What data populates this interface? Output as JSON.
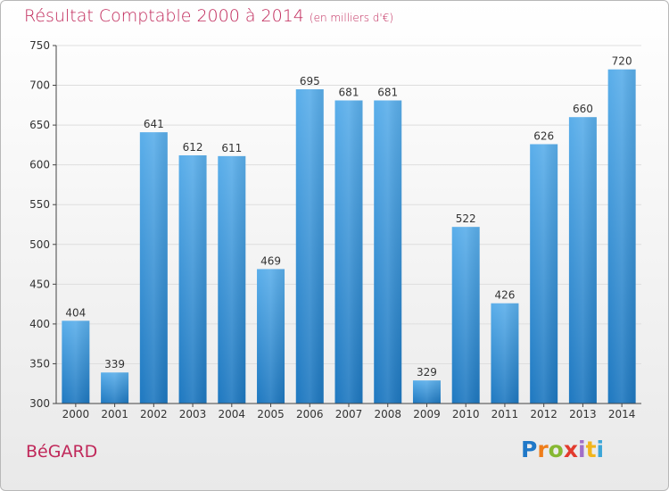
{
  "title": "Résultat Comptable 2000 à 2014",
  "unit": "(en milliers d'€)",
  "commune": "BéGARD",
  "logo": {
    "text": "Proxiti",
    "letters": [
      "P",
      "r",
      "o",
      "x",
      "i",
      "t",
      "i"
    ]
  },
  "colors": {
    "title": "#c0285a",
    "bar_top": "#5aaeea",
    "bar_bottom": "#1e78c0",
    "grid": "#dedede",
    "axis": "#444444"
  },
  "chart_data": {
    "type": "bar",
    "title": "Résultat Comptable 2000 à 2014",
    "xlabel": "",
    "ylabel": "",
    "categories": [
      "2000",
      "2001",
      "2002",
      "2003",
      "2004",
      "2005",
      "2006",
      "2007",
      "2008",
      "2009",
      "2010",
      "2011",
      "2012",
      "2013",
      "2014"
    ],
    "values": [
      404,
      339,
      641,
      612,
      611,
      469,
      695,
      681,
      681,
      329,
      522,
      426,
      626,
      660,
      720
    ],
    "ylim": [
      300,
      750
    ],
    "yticks": [
      300,
      350,
      400,
      450,
      500,
      550,
      600,
      650,
      700,
      750
    ],
    "grid": true
  }
}
